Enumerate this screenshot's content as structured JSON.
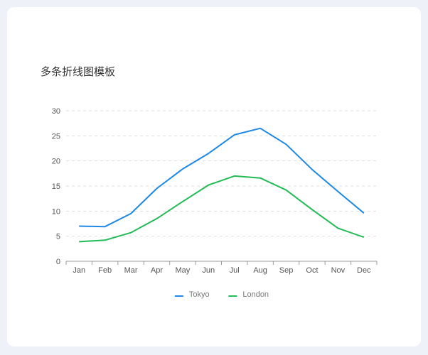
{
  "chart_data": {
    "type": "line",
    "title": "多条折线图模板",
    "categories": [
      "Jan",
      "Feb",
      "Mar",
      "Apr",
      "May",
      "Jun",
      "Jul",
      "Aug",
      "Sep",
      "Oct",
      "Nov",
      "Dec"
    ],
    "series": [
      {
        "name": "Tokyo",
        "color": "#1e88e5",
        "values": [
          7.0,
          6.9,
          9.5,
          14.5,
          18.4,
          21.5,
          25.2,
          26.5,
          23.3,
          18.3,
          13.9,
          9.6
        ]
      },
      {
        "name": "London",
        "color": "#22bb55",
        "values": [
          3.9,
          4.2,
          5.7,
          8.5,
          11.9,
          15.2,
          17.0,
          16.6,
          14.2,
          10.3,
          6.6,
          4.8
        ]
      }
    ],
    "yticks": [
      "0",
      "5",
      "10",
      "15",
      "20",
      "25",
      "30"
    ],
    "ylim": [
      0,
      30
    ],
    "xlabel": "",
    "ylabel": "",
    "grid": true,
    "legend": "bottom-center"
  }
}
